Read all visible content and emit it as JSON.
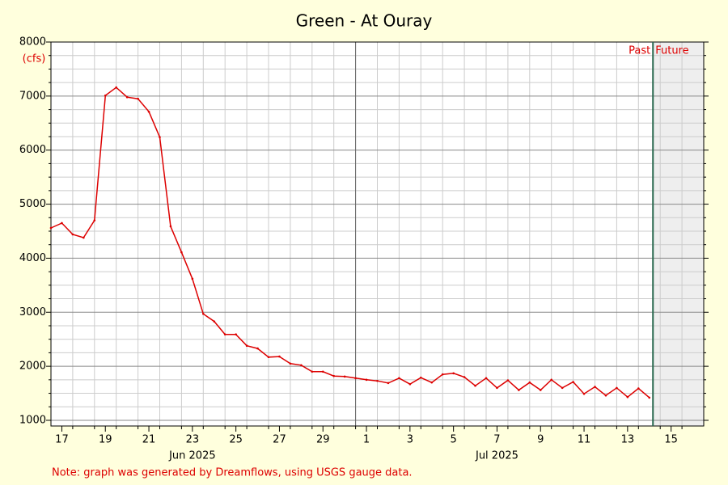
{
  "chart_data": {
    "type": "line",
    "title": "Green - At Ouray",
    "y_label": "(cfs)",
    "note": "Note: graph was generated by Dreamflows, using USGS gauge data.",
    "past_label": "Past",
    "future_label": "Future",
    "now": "2025-07-14T16:00",
    "xlim": [
      "2025-06-17T00:00",
      "2025-07-17T00:00"
    ],
    "ylim": [
      895,
      8000
    ],
    "yticks": [
      1000,
      2000,
      3000,
      4000,
      5000,
      6000,
      7000,
      8000
    ],
    "y_minor_step": 250,
    "grid": true,
    "xticks": [
      {
        "value": "2025-06-17T12:00",
        "label": "17"
      },
      {
        "value": "2025-06-19T12:00",
        "label": "19"
      },
      {
        "value": "2025-06-21T12:00",
        "label": "21"
      },
      {
        "value": "2025-06-23T12:00",
        "label": "23"
      },
      {
        "value": "2025-06-25T12:00",
        "label": "25"
      },
      {
        "value": "2025-06-27T12:00",
        "label": "27"
      },
      {
        "value": "2025-06-29T12:00",
        "label": "29"
      },
      {
        "value": "2025-07-01T12:00",
        "label": "1"
      },
      {
        "value": "2025-07-03T12:00",
        "label": "3"
      },
      {
        "value": "2025-07-05T12:00",
        "label": "5"
      },
      {
        "value": "2025-07-07T12:00",
        "label": "7"
      },
      {
        "value": "2025-07-09T12:00",
        "label": "9"
      },
      {
        "value": "2025-07-11T12:00",
        "label": "11"
      },
      {
        "value": "2025-07-13T12:00",
        "label": "13"
      },
      {
        "value": "2025-07-15T12:00",
        "label": "15"
      }
    ],
    "month_labels": [
      {
        "value": "2025-06-23T12:00",
        "label": "Jun 2025"
      },
      {
        "value": "2025-07-07T12:00",
        "label": "Jul 2025"
      }
    ],
    "month_boundaries": [
      "2025-07-01T00:00"
    ],
    "x": [
      "2025-06-17T00:00",
      "2025-06-17T12:00",
      "2025-06-18T00:00",
      "2025-06-18T12:00",
      "2025-06-19T00:00",
      "2025-06-19T12:00",
      "2025-06-20T00:00",
      "2025-06-20T12:00",
      "2025-06-21T00:00",
      "2025-06-21T12:00",
      "2025-06-22T00:00",
      "2025-06-22T12:00",
      "2025-06-23T00:00",
      "2025-06-23T12:00",
      "2025-06-24T00:00",
      "2025-06-24T12:00",
      "2025-06-25T00:00",
      "2025-06-25T12:00",
      "2025-06-26T00:00",
      "2025-06-26T12:00",
      "2025-06-27T00:00",
      "2025-06-27T12:00",
      "2025-06-28T00:00",
      "2025-06-28T12:00",
      "2025-06-29T00:00",
      "2025-06-29T12:00",
      "2025-06-30T00:00",
      "2025-06-30T12:00",
      "2025-07-01T00:00",
      "2025-07-01T12:00",
      "2025-07-02T00:00",
      "2025-07-02T12:00",
      "2025-07-03T00:00",
      "2025-07-03T12:00",
      "2025-07-04T00:00",
      "2025-07-04T12:00",
      "2025-07-05T00:00",
      "2025-07-05T12:00",
      "2025-07-06T00:00",
      "2025-07-06T12:00",
      "2025-07-07T00:00",
      "2025-07-07T12:00",
      "2025-07-08T00:00",
      "2025-07-08T12:00",
      "2025-07-09T00:00",
      "2025-07-09T12:00",
      "2025-07-10T00:00",
      "2025-07-10T12:00",
      "2025-07-11T00:00",
      "2025-07-11T12:00",
      "2025-07-12T00:00",
      "2025-07-12T12:00",
      "2025-07-13T00:00",
      "2025-07-13T12:00",
      "2025-07-14T00:00",
      "2025-07-14T12:00"
    ],
    "series": [
      {
        "color": "#dd0000",
        "values": [
          4560,
          4650,
          4440,
          4380,
          4700,
          7010,
          7160,
          6980,
          6950,
          6710,
          6240,
          4590,
          4110,
          3620,
          2970,
          2830,
          2590,
          2590,
          2380,
          2330,
          2170,
          2180,
          2050,
          2020,
          1900,
          1900,
          1820,
          1810,
          1780,
          1750,
          1730,
          1690,
          1780,
          1670,
          1790,
          1700,
          1850,
          1870,
          1800,
          1640,
          1780,
          1600,
          1740,
          1560,
          1700,
          1560,
          1750,
          1600,
          1710,
          1490,
          1620,
          1460,
          1600,
          1430,
          1590,
          1420
        ]
      }
    ]
  }
}
